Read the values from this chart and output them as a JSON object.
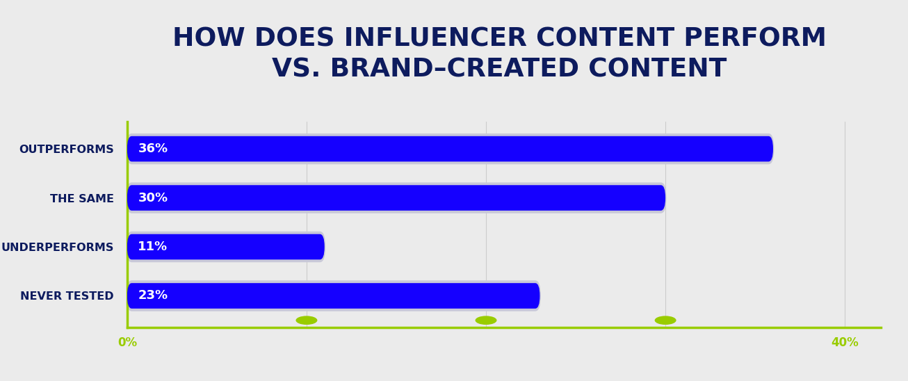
{
  "title_line1": "HOW DOES INFLUENCER CONTENT PERFORM",
  "title_line2": "VS. BRAND–CREATED CONTENT",
  "categories": [
    "OUTPERFORMS",
    "THE SAME",
    "UNDERPERFORMS",
    "NEVER TESTED"
  ],
  "values": [
    36,
    30,
    11,
    23
  ],
  "bar_color": "#1500FF",
  "bar_shadow_color": "#c8c8d8",
  "bar_label_color": "#ffffff",
  "bar_label_fontsize": 13,
  "title_color": "#0d1b5e",
  "title_fontsize": 27,
  "ylabel_color": "#0d1b5e",
  "ylabel_fontsize": 11.5,
  "axis_color": "#99cc00",
  "tick_label_color": "#99cc00",
  "tick_label_fontsize": 12,
  "background_color": "#ebebeb",
  "xlim": [
    0,
    42
  ],
  "xticks": [
    0,
    10,
    20,
    30,
    40
  ],
  "xtick_labels": [
    "0%",
    "",
    "",
    "",
    "40%"
  ],
  "grid_color": "#cccccc",
  "bar_height": 0.52,
  "bar_gap": 1.0,
  "oval_ticks": [
    10,
    20,
    30
  ]
}
